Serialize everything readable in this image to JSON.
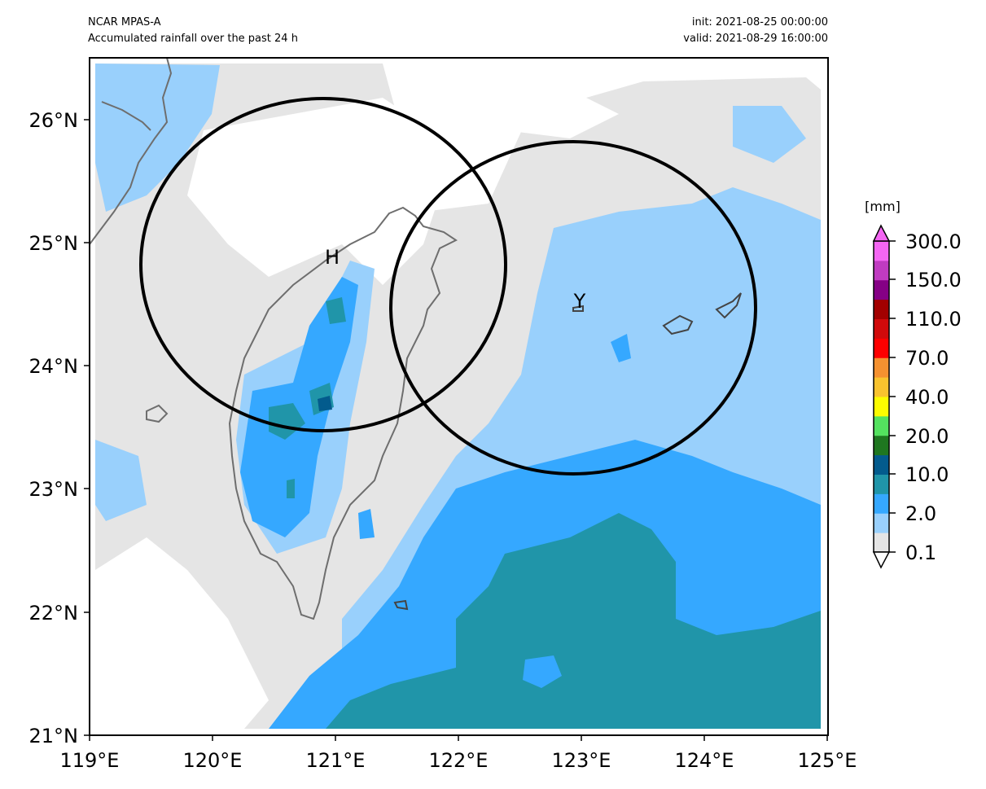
{
  "header": {
    "model": "NCAR MPAS-A",
    "title": "Accumulated rainfall over the past 24 h",
    "init": "init: 2021-08-25 00:00:00",
    "valid": "valid: 2021-08-29 16:00:00"
  },
  "axes": {
    "x_ticks": [
      "119°E",
      "120°E",
      "121°E",
      "122°E",
      "123°E",
      "124°E",
      "125°E"
    ],
    "y_ticks": [
      "21°N",
      "22°N",
      "23°N",
      "24°N",
      "25°N",
      "26°N"
    ],
    "lon_range": [
      119,
      125
    ],
    "lat_range": [
      21,
      26.5
    ]
  },
  "markers": {
    "h_label": "H",
    "y_label": "Y"
  },
  "colorbar": {
    "unit": "[mm]",
    "labels": [
      "0.1",
      "2.0",
      "10.0",
      "20.0",
      "40.0",
      "70.0",
      "110.0",
      "150.0",
      "300.0"
    ],
    "colors": [
      "#ffffff",
      "#e5e5e5",
      "#99d0fc",
      "#35a8ff",
      "#2095a9",
      "#035b8d",
      "#1f7720",
      "#54e25f",
      "#fcfc00",
      "#f9c32e",
      "#f59130",
      "#fe0000",
      "#d10a0b",
      "#a20000",
      "#850085",
      "#c03bc1",
      "#f466f3"
    ]
  },
  "colors": {
    "land_outline": "#6e6e6e",
    "circle": "#000000"
  }
}
